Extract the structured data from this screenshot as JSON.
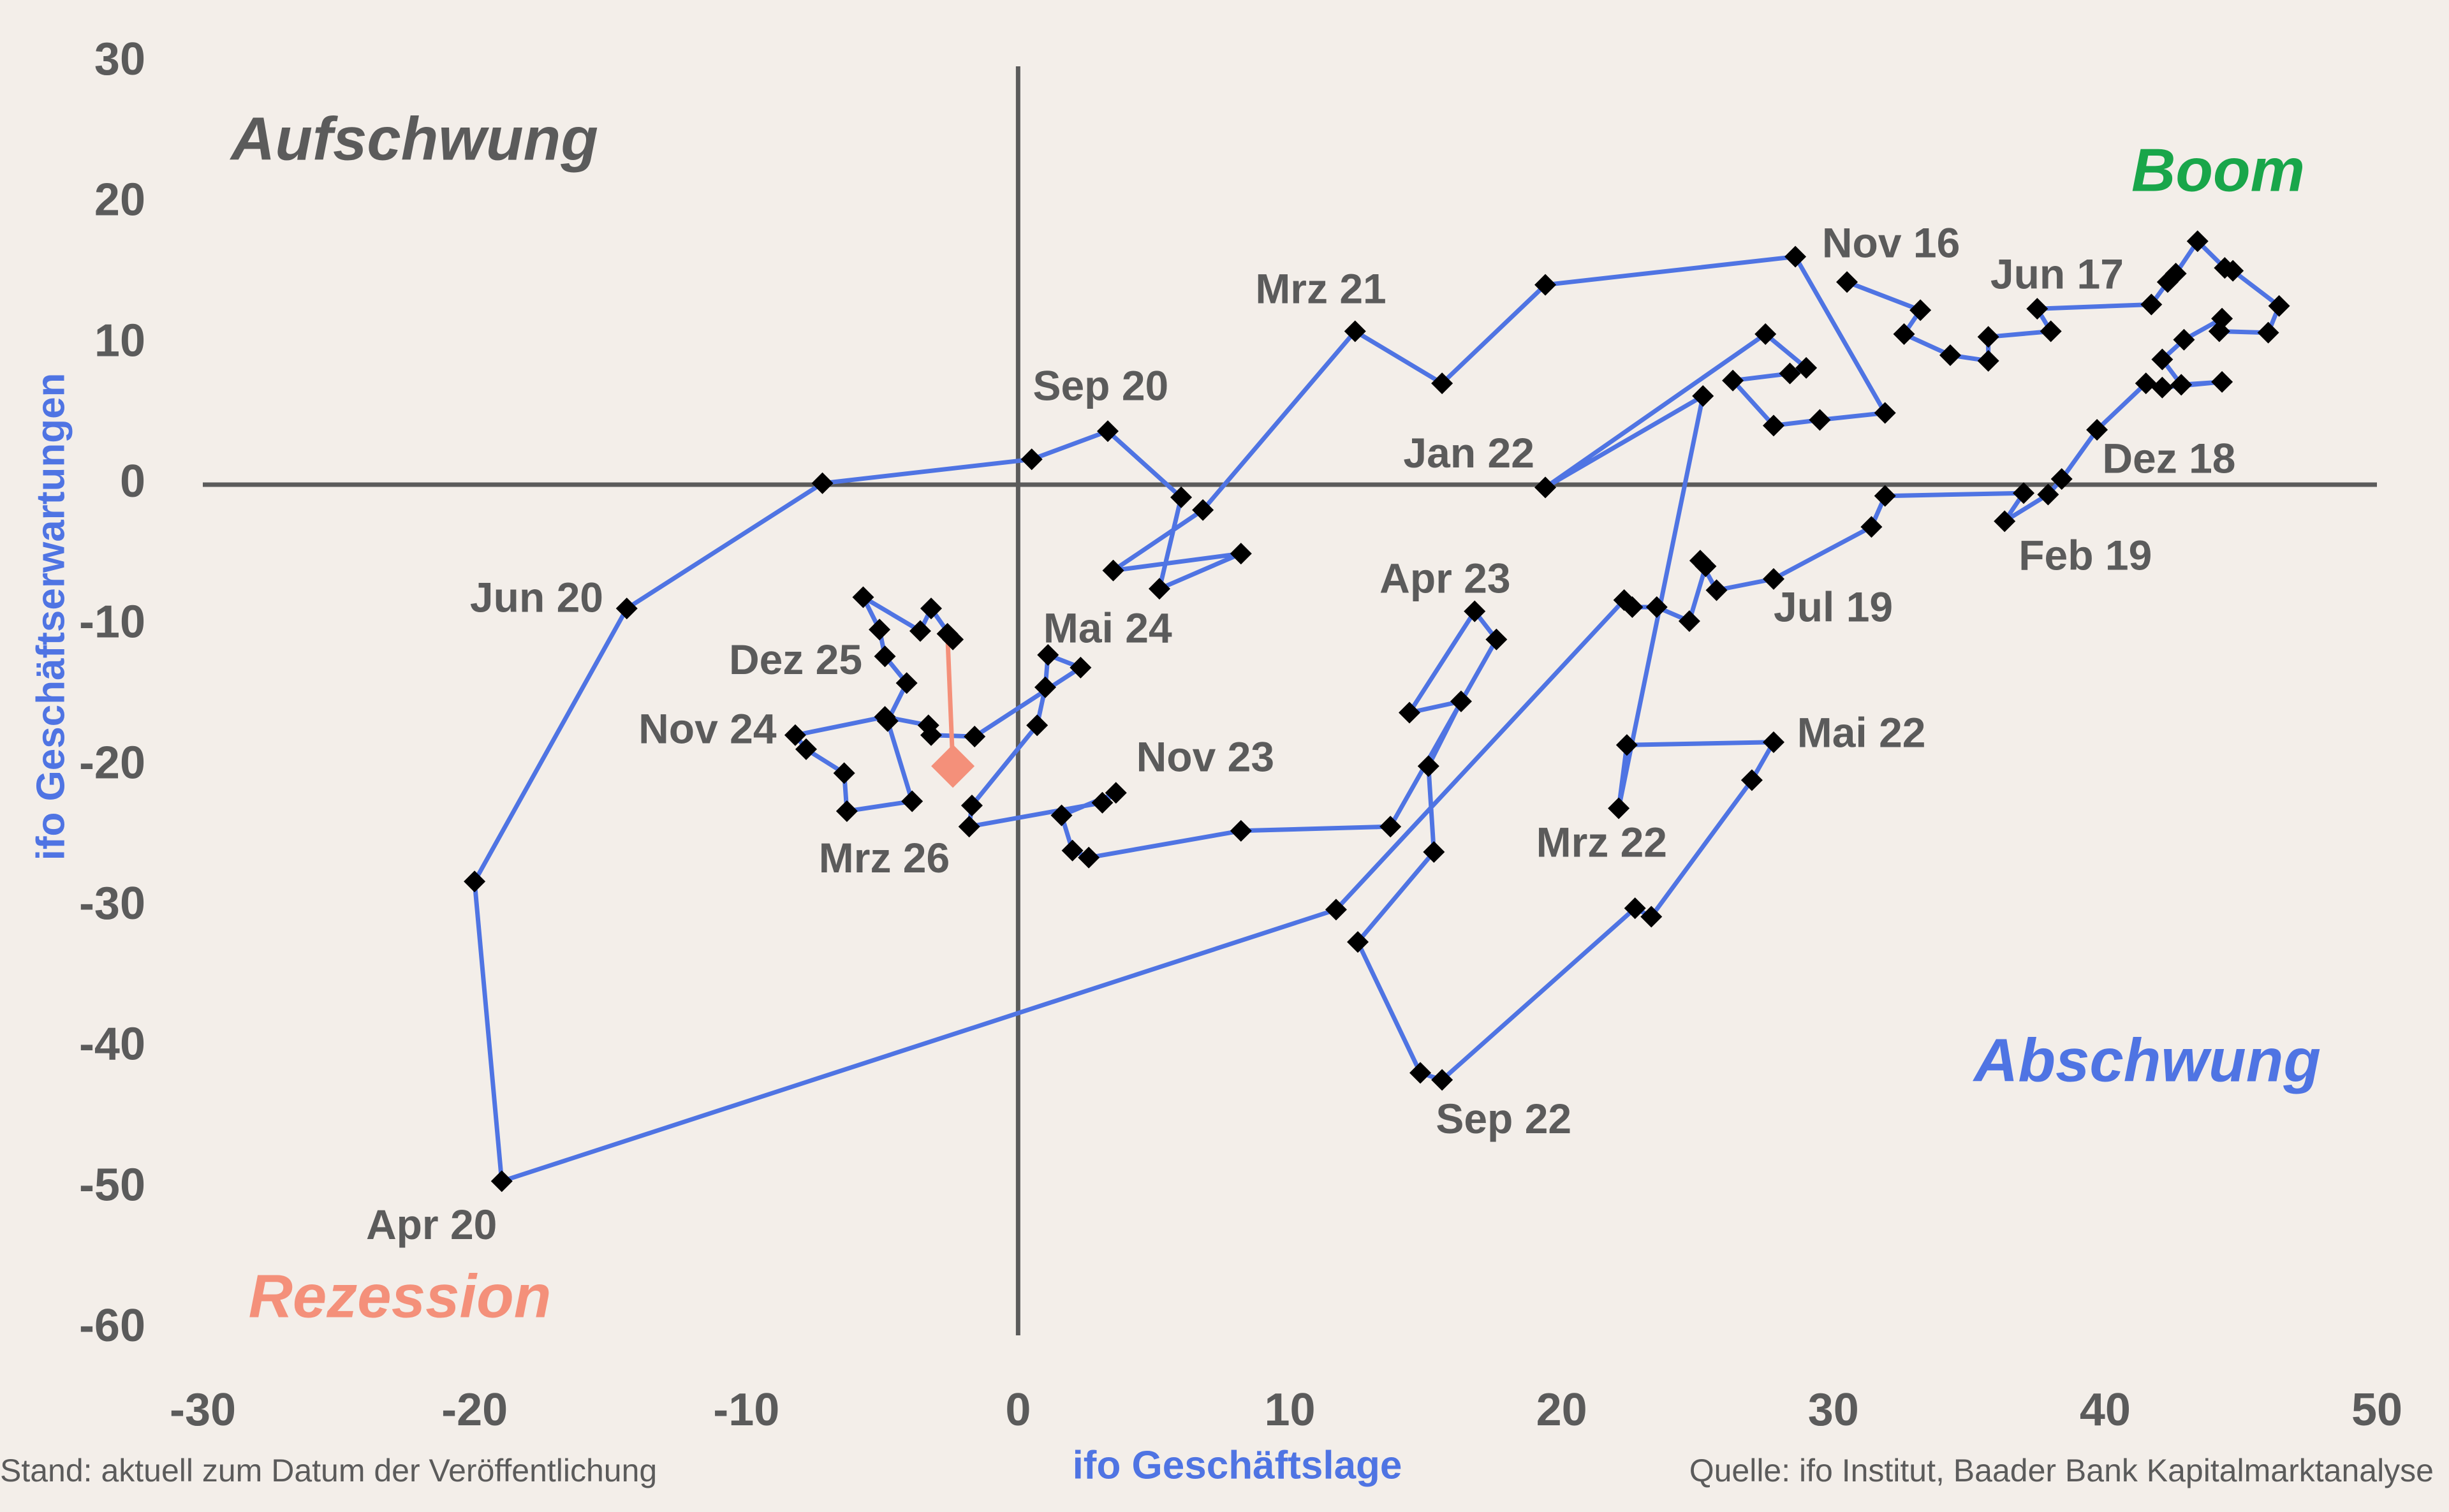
{
  "chart_data": {
    "type": "line",
    "x_label": "ifo Geschäftslage",
    "y_label": "ifo Geschäftserwartungen",
    "footer_left": "Stand: aktuell zum Datum der Veröffentlichung",
    "footer_right": "Quelle: ifo Institut, Baader Bank Kapitalmarktanalyse",
    "quadrants": [
      {
        "text": "Aufschwung",
        "color": "#5b5b5b"
      },
      {
        "text": "Boom",
        "color": "#19a64a"
      },
      {
        "text": "Abschwung",
        "color": "#4f74e3"
      },
      {
        "text": "Rezession",
        "color": "#f4907a"
      }
    ],
    "color": "#4f74e3",
    "marker_color": "#000000",
    "last_color": "#f4907a",
    "axis_color": "#5b5b5b",
    "xlim": [
      -30,
      50
    ],
    "ylim": [
      -60,
      30
    ],
    "xticks": [
      -30,
      -20,
      -10,
      0,
      10,
      20,
      30,
      40,
      50
    ],
    "yticks": [
      -60,
      -50,
      -40,
      -30,
      -20,
      -10,
      0,
      10,
      20,
      30
    ],
    "x": [
      30.5,
      33.2,
      32.6,
      34.3,
      35.7,
      35.7,
      38.0,
      37.5,
      41.7,
      42.3,
      42.6,
      43.4,
      44.4,
      44.7,
      46.4,
      46.0,
      44.2,
      44.3,
      42.9,
      42.1,
      42.8,
      44.3,
      42.1,
      41.5,
      39.7,
      38.4,
      37.9,
      36.3,
      37.0,
      31.9,
      31.4,
      27.8,
      25.7,
      25.1,
      25.3,
      24.7,
      23.5,
      22.6,
      22.3,
      11.7,
      -19.0,
      -20.0,
      -14.4,
      -7.2,
      0.5,
      3.3,
      6.0,
      5.2,
      8.2,
      3.5,
      6.8,
      12.4,
      15.6,
      19.4,
      28.6,
      31.9,
      29.5,
      27.8,
      26.3,
      28.4,
      29.0,
      27.5,
      19.4,
      25.2,
      22.1,
      22.4,
      27.8,
      27.0,
      23.3,
      22.7,
      15.6,
      14.8,
      12.5,
      15.3,
      15.1,
      16.3,
      14.4,
      16.8,
      17.6,
      13.7,
      8.2,
      2.6,
      2.0,
      1.6,
      3.6,
      3.1,
      -1.8,
      -1.7,
      0.7,
      1.0,
      1.1,
      2.3,
      -1.6,
      -3.2,
      -3.3,
      -4.9,
      -8.2,
      -7.8,
      -6.4,
      -6.3,
      -3.9,
      -4.8,
      -4.1,
      -4.9,
      -5.1,
      -5.7,
      -3.6,
      -3.2,
      -2.4,
      -2.6,
      -2.4
    ],
    "y": [
      14.4,
      12.4,
      10.7,
      9.2,
      8.8,
      10.5,
      10.9,
      12.5,
      12.8,
      14.4,
      15.0,
      17.3,
      15.4,
      15.2,
      12.7,
      10.8,
      10.9,
      11.8,
      10.3,
      8.9,
      7.1,
      7.3,
      6.9,
      7.2,
      3.9,
      0.4,
      -0.7,
      -2.6,
      -0.6,
      -0.8,
      -3.0,
      -6.7,
      -7.5,
      -5.4,
      -5.8,
      -9.7,
      -8.7,
      -8.7,
      -8.2,
      -30.2,
      -49.5,
      -28.2,
      -8.8,
      0.1,
      1.8,
      3.8,
      -0.9,
      -7.4,
      -4.9,
      -6.1,
      -1.8,
      10.9,
      7.2,
      14.2,
      16.2,
      5.1,
      4.6,
      4.2,
      7.4,
      7.9,
      8.3,
      10.7,
      -0.2,
      6.3,
      -23.0,
      -18.5,
      -18.3,
      -21.0,
      -30.7,
      -30.1,
      -42.3,
      -41.8,
      -32.5,
      -26.1,
      -20.0,
      -15.4,
      -16.2,
      -9.0,
      -11.0,
      -24.3,
      -24.6,
      -26.5,
      -26.0,
      -23.5,
      -21.9,
      -22.6,
      -24.3,
      -22.8,
      -17.1,
      -14.4,
      -12.1,
      -13.0,
      -17.9,
      -17.8,
      -17.1,
      -16.5,
      -17.8,
      -18.8,
      -20.5,
      -23.2,
      -22.5,
      -16.8,
      -14.1,
      -12.2,
      -10.3,
      -8.0,
      -10.4,
      -8.8,
      -11.0,
      -10.6,
      -20.0
    ],
    "point_labels": [
      "Nov 16",
      null,
      null,
      null,
      null,
      null,
      null,
      "Jun 17",
      null,
      null,
      null,
      null,
      null,
      null,
      null,
      null,
      null,
      null,
      null,
      null,
      null,
      null,
      null,
      null,
      null,
      "Dez 18",
      null,
      "Feb 19",
      null,
      null,
      null,
      "Jul 19",
      null,
      null,
      null,
      null,
      null,
      null,
      null,
      null,
      "Apr 20",
      null,
      "Jun 20",
      null,
      null,
      "Sep 20",
      null,
      null,
      null,
      null,
      null,
      "Mrz 21",
      null,
      null,
      null,
      null,
      null,
      null,
      null,
      null,
      null,
      null,
      "Jan 22",
      null,
      "Mrz 22",
      null,
      "Mai 22",
      null,
      null,
      null,
      "Sep 22",
      null,
      null,
      null,
      null,
      null,
      null,
      "Apr 23",
      null,
      null,
      null,
      null,
      null,
      null,
      "Nov 23",
      null,
      null,
      null,
      null,
      null,
      "Mai 24",
      null,
      null,
      null,
      null,
      null,
      "Nov 24",
      null,
      null,
      null,
      null,
      null,
      null,
      null,
      null,
      null,
      null,
      null,
      "Dez 25",
      null,
      "Mrz 26"
    ]
  }
}
